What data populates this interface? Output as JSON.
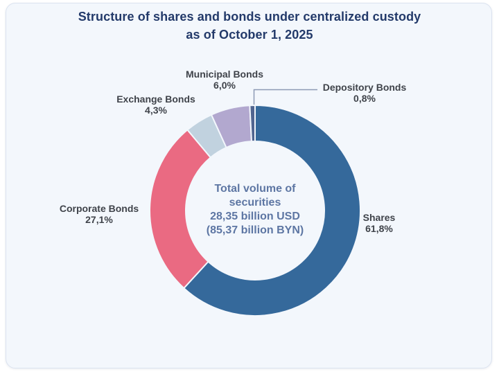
{
  "header": {
    "title_line1": "Structure of shares and bonds under centralized custody",
    "title_line2": "as of October 1, 2025"
  },
  "chart_data": {
    "type": "pie",
    "donut": true,
    "title": "Structure of shares and bonds under centralized custody as of October 1, 2025",
    "start_angle_deg": 0,
    "direction": "clockwise",
    "inner_radius_ratio": 0.66,
    "labels_position": "outside",
    "legend": "none",
    "slices": [
      {
        "label": "Shares",
        "value": 61.8,
        "pct_label": "61,8%",
        "color": "#35699B"
      },
      {
        "label": "Corporate Bonds",
        "value": 27.1,
        "pct_label": "27,1%",
        "color": "#EA6A82"
      },
      {
        "label": "Exchange Bonds",
        "value": 4.3,
        "pct_label": "4,3%",
        "color": "#C1D2DF"
      },
      {
        "label": "Municipal Bonds",
        "value": 6.0,
        "pct_label": "6,0%",
        "color": "#B2A8CF"
      },
      {
        "label": "Depository Bonds",
        "value": 0.8,
        "pct_label": "0,8%",
        "color": "#50648F"
      }
    ],
    "center_lines": [
      "Total volume of",
      "securities",
      "28,35 billion USD",
      "(85,37 billion BYN)"
    ]
  },
  "colors": {
    "page_bg": "#ffffff",
    "card_bg": "#f3f7fc",
    "card_border": "#dbe3f0",
    "title": "#233a6a",
    "label": "#3f434a",
    "center_text": "#5d76a3",
    "leader_line": "#8c99b4"
  }
}
